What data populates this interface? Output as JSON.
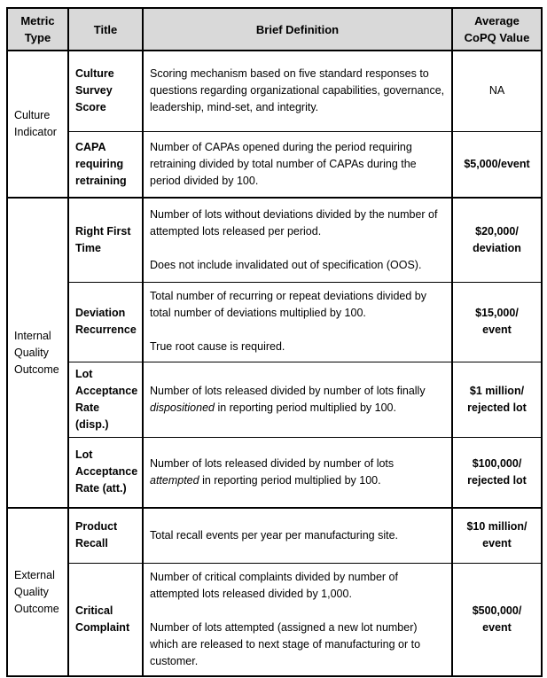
{
  "table": {
    "headers": [
      "Metric Type",
      "Title",
      "Brief Definition",
      "Average CoPQ Value"
    ],
    "colors": {
      "header_bg": "#d9d9d9",
      "border": "#000000",
      "text": "#000000"
    },
    "groups": [
      {
        "metric_type": "Culture Indicator",
        "rows": [
          {
            "title": "Culture Survey Score",
            "definition": [
              [
                {
                  "text": "Scoring mechanism based on five standard responses to questions regarding organizational capabilities, governance, leadership, mind-set, and integrity."
                }
              ]
            ],
            "value_lines": [
              "NA"
            ],
            "value_bold": false
          },
          {
            "title": "CAPA requiring retraining",
            "definition": [
              [
                {
                  "text": "Number of CAPAs opened during the period requiring retraining divided by total number of CAPAs during the period divided by 100."
                }
              ]
            ],
            "value_lines": [
              "$5,000/event"
            ],
            "value_bold": true
          }
        ]
      },
      {
        "metric_type": "Internal Quality Outcome",
        "rows": [
          {
            "title": "Right First Time",
            "definition": [
              [
                {
                  "text": "Number of lots without deviations divided by the number of attempted lots released per period."
                }
              ],
              [
                {
                  "text": "Does not include invalidated out of specification (OOS)."
                }
              ]
            ],
            "value_lines": [
              "$20,000/",
              "deviation"
            ],
            "value_bold": true
          },
          {
            "title": "Deviation Recurrence",
            "definition": [
              [
                {
                  "text": "Total number of recurring or repeat deviations divided by total number of deviations multiplied by 100."
                }
              ],
              [
                {
                  "text": "True root cause is required."
                }
              ]
            ],
            "value_lines": [
              "$15,000/",
              "event"
            ],
            "value_bold": true
          },
          {
            "title": "Lot Acceptance Rate (disp.)",
            "definition": [
              [
                {
                  "text": "Number of lots released divided by number of lots finally "
                },
                {
                  "text": "dispositioned",
                  "italic": true
                },
                {
                  "text": " in reporting period multiplied by 100."
                }
              ]
            ],
            "value_lines": [
              "$1 million/",
              "rejected lot"
            ],
            "value_bold": true
          },
          {
            "title": "Lot Acceptance Rate (att.)",
            "definition": [
              [
                {
                  "text": "Number of lots released divided by number of lots "
                },
                {
                  "text": "attempted",
                  "italic": true
                },
                {
                  "text": " in reporting period multiplied by 100."
                }
              ]
            ],
            "value_lines": [
              "$100,000/",
              "rejected lot"
            ],
            "value_bold": true
          }
        ]
      },
      {
        "metric_type": "External Quality Outcome",
        "rows": [
          {
            "title": "Product Recall",
            "definition": [
              [
                {
                  "text": "Total recall events per year per manufacturing site."
                }
              ]
            ],
            "value_lines": [
              "$10 million/",
              "event"
            ],
            "value_bold": true
          },
          {
            "title": "Critical Complaint",
            "definition": [
              [
                {
                  "text": "Number of critical complaints divided by number of attempted lots released divided by 1,000."
                }
              ],
              [
                {
                  "text": "Number of lots attempted (assigned a new lot number) which are released to next stage of manufacturing or to customer."
                }
              ]
            ],
            "value_lines": [
              "$500,000/",
              "event"
            ],
            "value_bold": true
          }
        ]
      }
    ]
  }
}
